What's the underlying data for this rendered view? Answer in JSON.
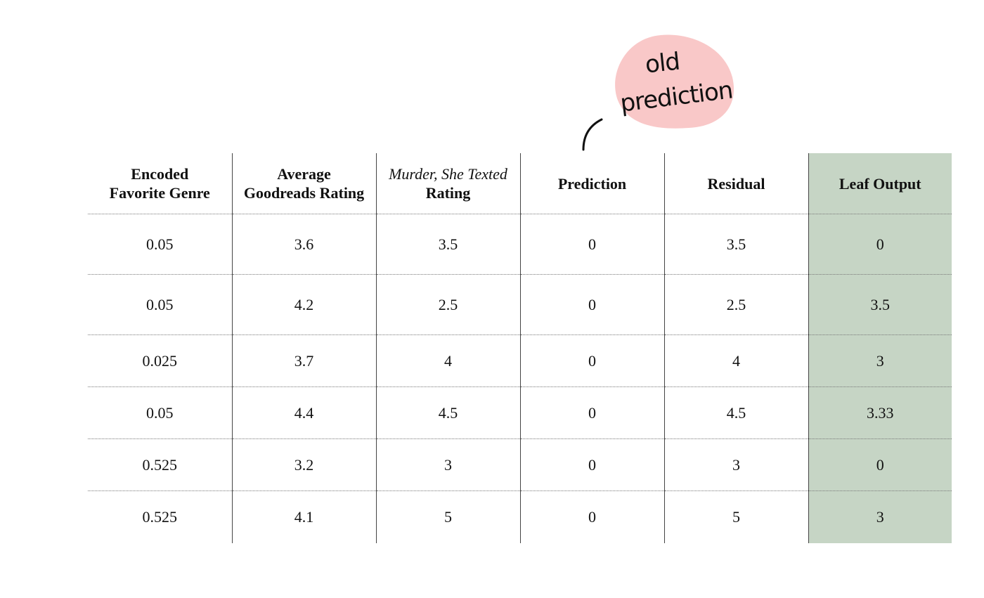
{
  "annotation": {
    "line1": "old",
    "line2": "prediction",
    "bubble_color": "#f9c8c8"
  },
  "table": {
    "headers": [
      {
        "line1": "Encoded",
        "line2": "Favorite Genre"
      },
      {
        "line1": "Average",
        "line2": "Goodreads Rating"
      },
      {
        "line1": "Murder, She Texted",
        "line2": "Rating"
      },
      {
        "line1": "Prediction"
      },
      {
        "line1": "Residual"
      },
      {
        "line1": "Leaf Output"
      }
    ],
    "rows": [
      [
        "0.05",
        "3.6",
        "3.5",
        "0",
        "3.5",
        "0"
      ],
      [
        "0.05",
        "4.2",
        "2.5",
        "0",
        "2.5",
        "3.5"
      ],
      [
        "0.025",
        "3.7",
        "4",
        "0",
        "4",
        "3"
      ],
      [
        "0.05",
        "4.4",
        "4.5",
        "0",
        "4.5",
        "3.33"
      ],
      [
        "0.525",
        "3.2",
        "3",
        "0",
        "3",
        "0"
      ],
      [
        "0.525",
        "4.1",
        "5",
        "0",
        "5",
        "3"
      ]
    ],
    "highlight_color": "#c6d5c5"
  }
}
